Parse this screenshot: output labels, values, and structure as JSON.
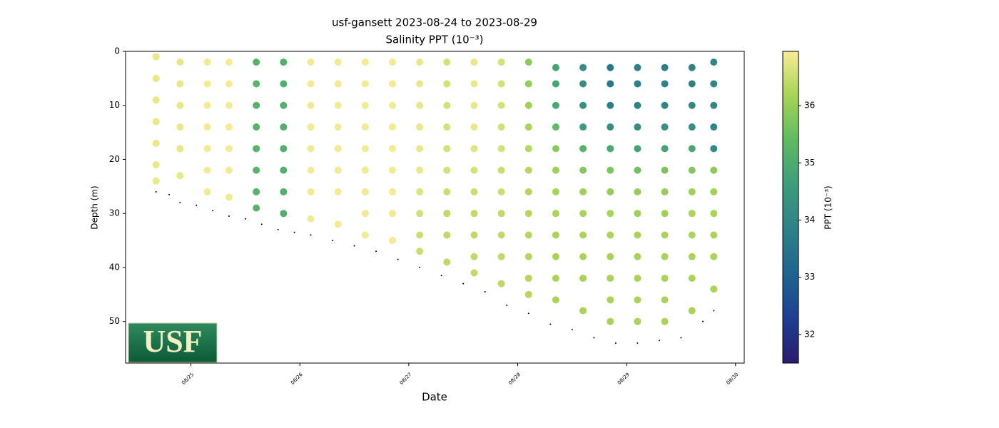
{
  "chart_data": {
    "type": "scatter",
    "title": "usf-gansett 2023-08-24 to 2023-08-29",
    "subtitle": "Salinity PPT (10⁻³)",
    "x_label": "Date",
    "y_label": "Depth (m)",
    "colorbar_label": "PPT (10⁻³)",
    "logo_text": "USF",
    "xlim": [
      24.4,
      30.08
    ],
    "xticks": [
      {
        "value": 25,
        "label": "08/25"
      },
      {
        "value": 26,
        "label": "08/26"
      },
      {
        "value": 27,
        "label": "08/27"
      },
      {
        "value": 28,
        "label": "08/28"
      },
      {
        "value": 29,
        "label": "08/29"
      },
      {
        "value": 30,
        "label": "08/30"
      }
    ],
    "ylim": [
      57.7,
      0
    ],
    "yticks": [
      0,
      10,
      20,
      30,
      40,
      50
    ],
    "clim": [
      31.5,
      36.95
    ],
    "cticks": [
      32,
      33,
      34,
      35,
      36
    ],
    "cmap": [
      "#2a1a6c",
      "#1e3f93",
      "#1e6490",
      "#2d8188",
      "#3c9d7b",
      "#5fba63",
      "#a6d356",
      "#f8ec95"
    ],
    "bottom_color": "#000000",
    "profiles": [
      {
        "x": 24.68,
        "depth": [
          1,
          5,
          9,
          13,
          17,
          21,
          24
        ],
        "salinity": [
          36.8,
          36.8,
          36.8,
          36.8,
          36.8,
          36.8,
          36.8
        ]
      },
      {
        "x": 24.9,
        "depth": [
          2,
          6,
          10,
          14,
          18,
          23
        ],
        "salinity": [
          36.8,
          36.8,
          36.8,
          36.8,
          36.8,
          36.8
        ]
      },
      {
        "x": 25.15,
        "depth": [
          2,
          6,
          10,
          14,
          18,
          22,
          26
        ],
        "salinity": [
          36.9,
          36.9,
          36.9,
          36.9,
          36.9,
          36.9,
          36.9
        ]
      },
      {
        "x": 25.35,
        "depth": [
          2,
          6,
          10,
          14,
          18,
          22,
          27
        ],
        "salinity": [
          36.9,
          36.9,
          36.9,
          36.9,
          36.9,
          36.9,
          36.9
        ]
      },
      {
        "x": 25.6,
        "depth": [
          2,
          6,
          10,
          14,
          18,
          22,
          26,
          29
        ],
        "salinity": [
          35.2,
          35.2,
          35.2,
          35.2,
          35.2,
          35.2,
          35.2,
          35.2
        ]
      },
      {
        "x": 25.85,
        "depth": [
          2,
          6,
          10,
          14,
          18,
          22,
          26,
          30
        ],
        "salinity": [
          35.1,
          35.1,
          35.1,
          35.1,
          35.1,
          35.1,
          35.1,
          35.1
        ]
      },
      {
        "x": 26.1,
        "depth": [
          2,
          6,
          10,
          14,
          18,
          22,
          26,
          31
        ],
        "salinity": [
          36.9,
          36.9,
          36.9,
          36.9,
          36.9,
          36.9,
          36.9,
          36.9
        ]
      },
      {
        "x": 26.35,
        "depth": [
          2,
          6,
          10,
          14,
          18,
          22,
          26,
          32
        ],
        "salinity": [
          36.9,
          36.9,
          36.9,
          36.9,
          36.9,
          36.9,
          36.9,
          36.9
        ]
      },
      {
        "x": 26.6,
        "depth": [
          2,
          6,
          10,
          14,
          18,
          22,
          26,
          30,
          34
        ],
        "salinity": [
          36.9,
          36.9,
          36.9,
          36.9,
          36.9,
          36.9,
          36.9,
          36.9,
          36.9
        ]
      },
      {
        "x": 26.85,
        "depth": [
          2,
          6,
          10,
          14,
          18,
          22,
          26,
          30,
          35
        ],
        "salinity": [
          36.9,
          36.9,
          36.9,
          36.9,
          36.9,
          36.9,
          36.9,
          36.9,
          36.9
        ]
      },
      {
        "x": 27.1,
        "depth": [
          2,
          6,
          10,
          14,
          18,
          22,
          26,
          30,
          34,
          37
        ],
        "salinity": [
          36.8,
          36.8,
          36.8,
          36.8,
          36.8,
          36.8,
          36.7,
          36.6,
          36.5,
          36.5
        ]
      },
      {
        "x": 27.35,
        "depth": [
          2,
          6,
          10,
          14,
          18,
          22,
          26,
          30,
          34,
          39
        ],
        "salinity": [
          36.6,
          36.6,
          36.6,
          36.6,
          36.6,
          36.6,
          36.5,
          36.4,
          36.4,
          36.4
        ]
      },
      {
        "x": 27.6,
        "depth": [
          2,
          6,
          10,
          14,
          18,
          22,
          26,
          30,
          34,
          38,
          41
        ],
        "salinity": [
          36.8,
          36.8,
          36.8,
          36.8,
          36.7,
          36.6,
          36.5,
          36.4,
          36.4,
          36.4,
          36.4
        ]
      },
      {
        "x": 27.85,
        "depth": [
          2,
          6,
          10,
          14,
          18,
          22,
          26,
          30,
          34,
          38,
          43
        ],
        "salinity": [
          36.6,
          36.6,
          36.6,
          36.6,
          36.6,
          36.5,
          36.5,
          36.4,
          36.4,
          36.4,
          36.4
        ]
      },
      {
        "x": 28.1,
        "depth": [
          2,
          6,
          10,
          14,
          18,
          22,
          26,
          30,
          34,
          38,
          42,
          45
        ],
        "salinity": [
          35.9,
          36.0,
          36.1,
          36.2,
          36.3,
          36.3,
          36.3,
          36.3,
          36.3,
          36.3,
          36.3,
          36.3
        ]
      },
      {
        "x": 28.35,
        "depth": [
          3,
          6,
          10,
          14,
          18,
          22,
          26,
          30,
          34,
          38,
          42,
          46
        ],
        "salinity": [
          34.8,
          34.8,
          34.9,
          35.4,
          35.9,
          36.1,
          36.2,
          36.2,
          36.2,
          36.2,
          36.2,
          36.2
        ]
      },
      {
        "x": 28.6,
        "depth": [
          3,
          6,
          10,
          14,
          18,
          22,
          26,
          30,
          34,
          38,
          42,
          48
        ],
        "salinity": [
          34.2,
          34.2,
          34.3,
          34.6,
          35.2,
          35.8,
          36.1,
          36.2,
          36.2,
          36.2,
          36.2,
          36.2
        ]
      },
      {
        "x": 28.85,
        "depth": [
          3,
          6,
          10,
          14,
          18,
          22,
          26,
          30,
          34,
          38,
          42,
          46,
          50
        ],
        "salinity": [
          33.6,
          33.6,
          33.8,
          34.2,
          35.0,
          35.7,
          36.0,
          36.2,
          36.2,
          36.2,
          36.2,
          36.2,
          36.2
        ]
      },
      {
        "x": 29.1,
        "depth": [
          3,
          6,
          10,
          14,
          18,
          22,
          26,
          30,
          34,
          38,
          42,
          46,
          50
        ],
        "salinity": [
          33.8,
          33.8,
          33.9,
          34.2,
          34.8,
          35.6,
          36.0,
          36.1,
          36.2,
          36.2,
          36.2,
          36.2,
          36.2
        ]
      },
      {
        "x": 29.35,
        "depth": [
          3,
          6,
          10,
          14,
          18,
          22,
          26,
          30,
          34,
          38,
          42,
          46,
          50
        ],
        "salinity": [
          33.8,
          33.9,
          34.0,
          34.3,
          34.8,
          35.7,
          36.0,
          36.1,
          36.2,
          36.2,
          36.2,
          36.2,
          36.2
        ]
      },
      {
        "x": 29.6,
        "depth": [
          3,
          6,
          10,
          14,
          18,
          22,
          26,
          30,
          34,
          38,
          42,
          48
        ],
        "salinity": [
          33.9,
          33.9,
          34.0,
          34.2,
          34.9,
          35.8,
          36.1,
          36.2,
          36.2,
          36.2,
          36.2,
          36.2
        ]
      },
      {
        "x": 29.8,
        "depth": [
          2,
          6,
          10,
          14,
          18,
          22,
          26,
          30,
          34,
          38,
          44
        ],
        "salinity": [
          34.0,
          34.0,
          34.0,
          34.0,
          34.1,
          35.9,
          36.1,
          36.2,
          36.2,
          36.2,
          36.2
        ]
      }
    ],
    "bottom": {
      "x": [
        24.68,
        24.8,
        24.9,
        25.05,
        25.2,
        25.35,
        25.5,
        25.65,
        25.8,
        25.95,
        26.1,
        26.3,
        26.5,
        26.7,
        26.9,
        27.1,
        27.3,
        27.5,
        27.7,
        27.9,
        28.1,
        28.3,
        28.5,
        28.7,
        28.9,
        29.1,
        29.3,
        29.5,
        29.7,
        29.8
      ],
      "depth": [
        26,
        26.5,
        28,
        28.5,
        29.5,
        30.5,
        31,
        32,
        33,
        33.5,
        34,
        35,
        36,
        37,
        38.5,
        40,
        41.5,
        43,
        44.5,
        47,
        48.5,
        50.5,
        51.5,
        53,
        54,
        54,
        53.5,
        53,
        50,
        48
      ]
    }
  }
}
